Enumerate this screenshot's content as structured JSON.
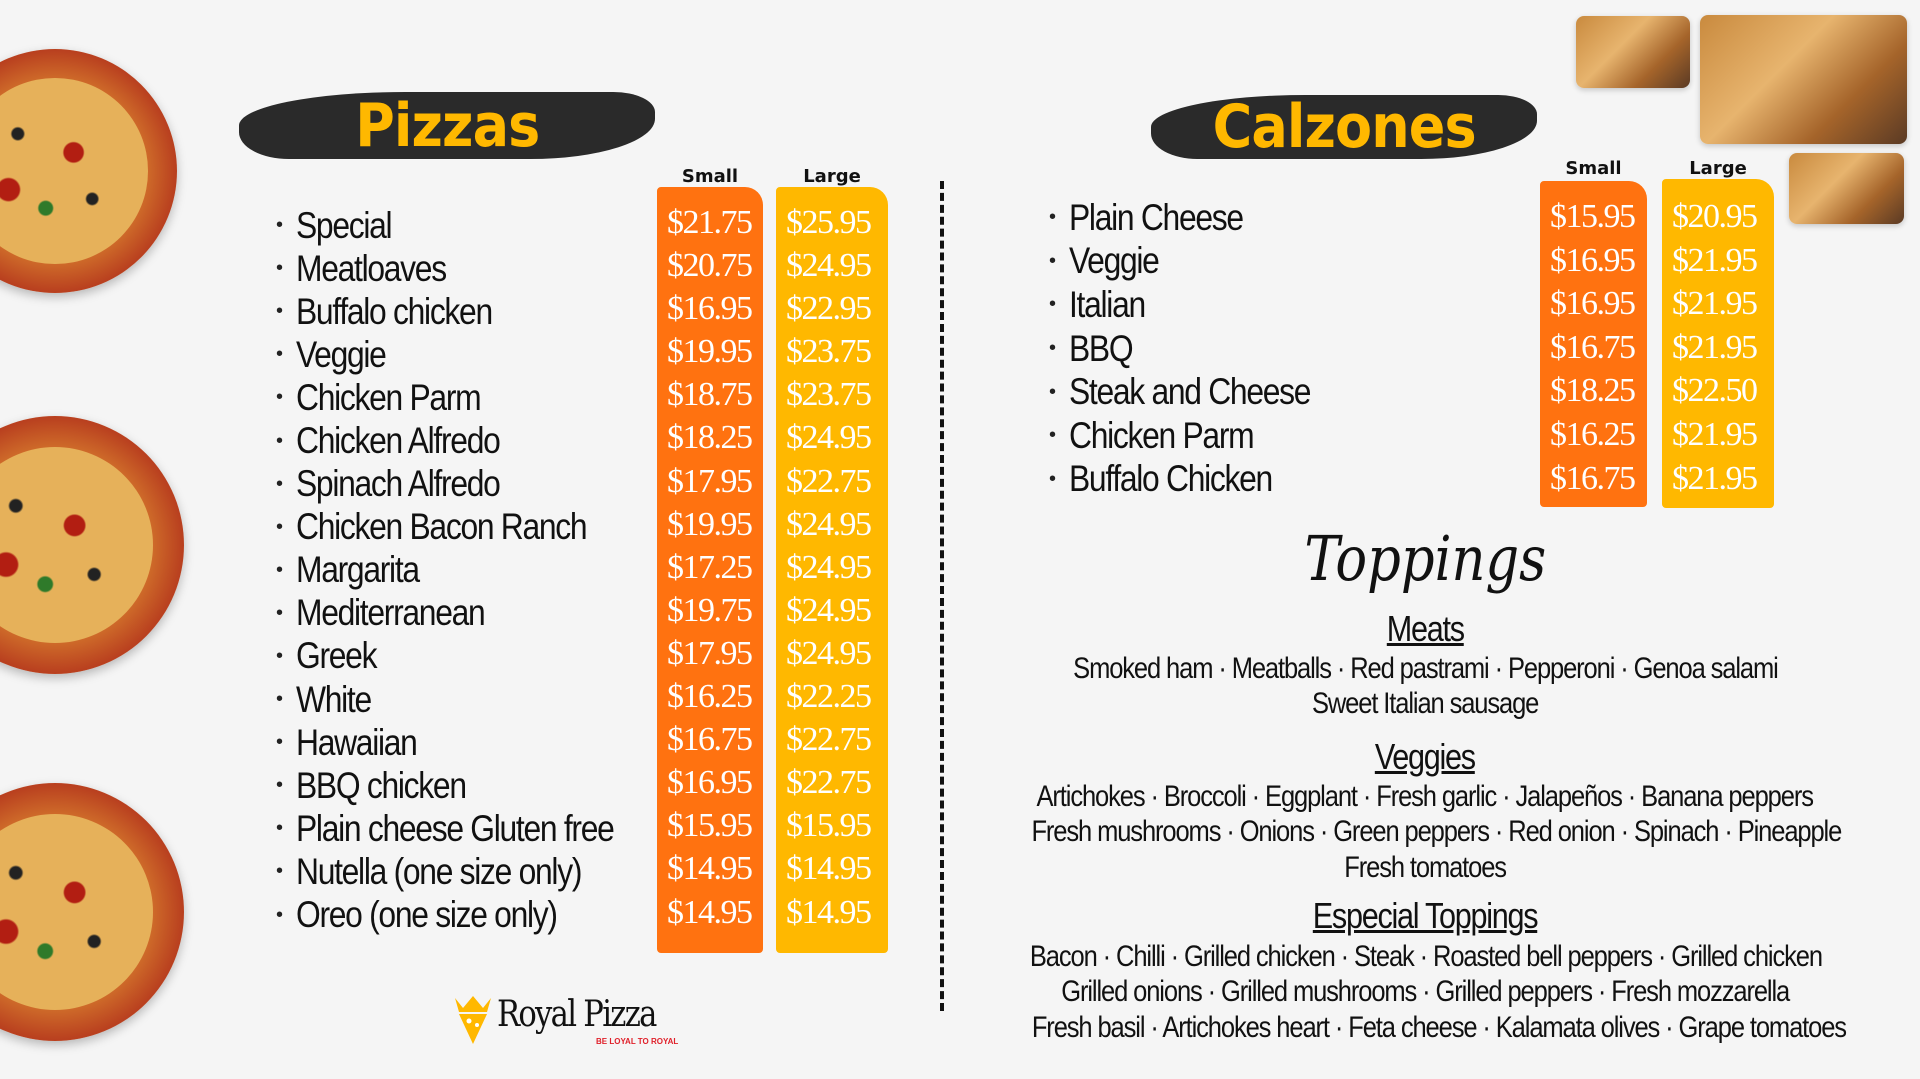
{
  "pizzas": {
    "title": "Pizzas",
    "small_label": "Small",
    "large_label": "Large",
    "items": [
      {
        "name": "Special",
        "small": "$21.75",
        "large": "$25.95"
      },
      {
        "name": "Meatloaves",
        "small": "$20.75",
        "large": "$24.95"
      },
      {
        "name": "Buffalo chicken",
        "small": "$16.95",
        "large": "$22.95"
      },
      {
        "name": "Veggie",
        "small": "$19.95",
        "large": "$23.75"
      },
      {
        "name": "Chicken Parm",
        "small": "$18.75",
        "large": "$23.75"
      },
      {
        "name": "Chicken Alfredo",
        "small": "$18.25",
        "large": "$24.95"
      },
      {
        "name": "Spinach Alfredo",
        "small": "$17.95",
        "large": "$22.75"
      },
      {
        "name": "Chicken Bacon Ranch",
        "small": "$19.95",
        "large": "$24.95"
      },
      {
        "name": "Margarita",
        "small": "$17.25",
        "large": "$24.95"
      },
      {
        "name": "Mediterranean",
        "small": "$19.75",
        "large": "$24.95"
      },
      {
        "name": "Greek",
        "small": "$17.95",
        "large": "$24.95"
      },
      {
        "name": "White",
        "small": "$16.25",
        "large": "$22.25"
      },
      {
        "name": "Hawaiian",
        "small": "$16.75",
        "large": "$22.75"
      },
      {
        "name": "BBQ chicken",
        "small": "$16.95",
        "large": "$22.75"
      },
      {
        "name": "Plain cheese Gluten free",
        "small": "$15.95",
        "large": "$15.95"
      },
      {
        "name": "Nutella (one size only)",
        "small": "$14.95",
        "large": "$14.95"
      },
      {
        "name": "Oreo  (one size only)",
        "small": "$14.95",
        "large": "$14.95"
      }
    ]
  },
  "calzones": {
    "title": "Calzones",
    "small_label": "Small",
    "large_label": "Large",
    "items": [
      {
        "name": "Plain Cheese",
        "small": "$15.95",
        "large": "$20.95"
      },
      {
        "name": "Veggie",
        "small": "$16.95",
        "large": "$21.95"
      },
      {
        "name": "Italian",
        "small": "$16.95",
        "large": "$21.95"
      },
      {
        "name": "BBQ",
        "small": "$16.75",
        "large": "$21.95"
      },
      {
        "name": "Steak and Cheese",
        "small": "$18.25",
        "large": "$22.50"
      },
      {
        "name": "Chicken Parm",
        "small": "$16.25",
        "large": "$21.95"
      },
      {
        "name": "Buffalo Chicken",
        "small": "$16.75",
        "large": "$21.95"
      }
    ]
  },
  "toppings": {
    "title": "Toppings",
    "meats": {
      "heading": "Meats",
      "lines": [
        "Smoked ham · Meatballs · Red pastrami · Pepperoni · Genoa salami",
        "Sweet Italian sausage"
      ]
    },
    "veggies": {
      "heading": "Veggies",
      "lines": [
        "Artichokes · Broccoli · Eggplant · Fresh garlic · Jalapeños · Banana peppers",
        "Fresh mushrooms · Onions · Green peppers · Red onion · Spinach · Pineapple",
        "Fresh tomatoes"
      ]
    },
    "especial": {
      "heading": "Especial Toppings",
      "lines": [
        "Bacon · Chilli · Grilled chicken · Steak · Roasted bell peppers · Grilled chicken",
        "Grilled onions · Grilled mushrooms · Grilled peppers · Fresh mozzarella",
        "Fresh basil · Artichokes heart · Feta cheese · Kalamata olives · Grape tomatoes"
      ]
    }
  },
  "logo": {
    "name": "Royal Pizza",
    "tagline": "BE LOYAL TO ROYAL"
  },
  "colors": {
    "small_col": "#ff7210",
    "large_col": "#ffb800",
    "banner": "#2a2a2a",
    "title": "#ffb800",
    "tagline": "#e0202a"
  }
}
